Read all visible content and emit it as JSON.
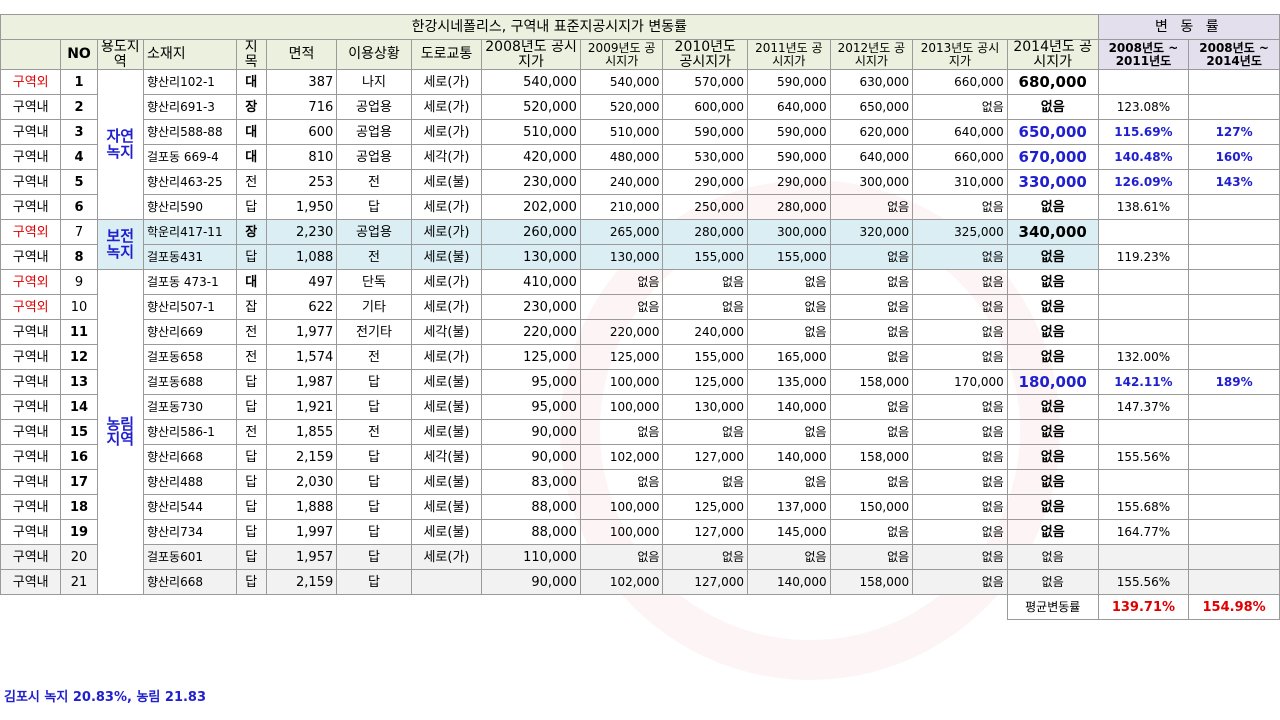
{
  "title": "한강시네폴리스, 구역내 표준지공시지가 변동률",
  "rate_title": "변 동 률",
  "headers": {
    "no": "NO",
    "zone": "용도지역",
    "location": "소재지",
    "land_type": "지목",
    "area": "면적",
    "usage": "이용상황",
    "road": "도로교통",
    "y2008": "2008년도 공시지가",
    "y2009": "2009년도 공시지가",
    "y2010": "2010년도 공시지가",
    "y2011": "2011년도 공시지가",
    "y2012": "2012년도 공시지가",
    "y2013": "2013년도 공시지가",
    "y2014": "2014년도 공시지가",
    "rate1": "2008년도 ~ 2011년도",
    "rate2": "2008년도 ~ 2014년도"
  },
  "zones": {
    "z1": "자연녹지",
    "z2": "보전녹지",
    "z3": "농림지역"
  },
  "rows": [
    {
      "div": "구역외",
      "no": "1",
      "loc": "향산리102-1",
      "type": "대",
      "area": "387",
      "use": "나지",
      "road": "세로(가)",
      "y2008": "540,000",
      "y2009": "540,000",
      "y2010": "570,000",
      "y2011": "590,000",
      "y2012": "630,000",
      "y2013": "660,000",
      "y2014": "680,000",
      "rate1": "",
      "rate2": ""
    },
    {
      "div": "구역내",
      "no": "2",
      "loc": "향산리691-3",
      "type": "장",
      "area": "716",
      "use": "공업용",
      "road": "세로(가)",
      "y2008": "520,000",
      "y2009": "520,000",
      "y2010": "600,000",
      "y2011": "640,000",
      "y2012": "650,000",
      "y2013": "없음",
      "y2014": "없음",
      "rate1": "123.08%",
      "rate2": ""
    },
    {
      "div": "구역내",
      "no": "3",
      "loc": "향산리588-88",
      "type": "대",
      "area": "600",
      "use": "공업용",
      "road": "세로(가)",
      "y2008": "510,000",
      "y2009": "510,000",
      "y2010": "590,000",
      "y2011": "590,000",
      "y2012": "620,000",
      "y2013": "640,000",
      "y2014": "650,000",
      "rate1": "115.69%",
      "rate2": "127%"
    },
    {
      "div": "구역내",
      "no": "4",
      "loc": "걸포동 669-4",
      "type": "대",
      "area": "810",
      "use": "공업용",
      "road": "세각(가)",
      "y2008": "420,000",
      "y2009": "480,000",
      "y2010": "530,000",
      "y2011": "590,000",
      "y2012": "640,000",
      "y2013": "660,000",
      "y2014": "670,000",
      "rate1": "140.48%",
      "rate2": "160%"
    },
    {
      "div": "구역내",
      "no": "5",
      "loc": "향산리463-25",
      "type": "전",
      "area": "253",
      "use": "전",
      "road": "세로(불)",
      "y2008": "230,000",
      "y2009": "240,000",
      "y2010": "290,000",
      "y2011": "290,000",
      "y2012": "300,000",
      "y2013": "310,000",
      "y2014": "330,000",
      "rate1": "126.09%",
      "rate2": "143%"
    },
    {
      "div": "구역내",
      "no": "6",
      "loc": "향산리590",
      "type": "답",
      "area": "1,950",
      "use": "답",
      "road": "세로(가)",
      "y2008": "202,000",
      "y2009": "210,000",
      "y2010": "250,000",
      "y2011": "280,000",
      "y2012": "없음",
      "y2013": "없음",
      "y2014": "없음",
      "rate1": "138.61%",
      "rate2": ""
    },
    {
      "div": "구역외",
      "no": "7",
      "loc": "학운리417-11",
      "type": "장",
      "area": "2,230",
      "use": "공업용",
      "road": "세로(가)",
      "y2008": "260,000",
      "y2009": "265,000",
      "y2010": "280,000",
      "y2011": "300,000",
      "y2012": "320,000",
      "y2013": "325,000",
      "y2014": "340,000",
      "rate1": "",
      "rate2": ""
    },
    {
      "div": "구역내",
      "no": "8",
      "loc": "걸포동431",
      "type": "답",
      "area": "1,088",
      "use": "전",
      "road": "세로(불)",
      "y2008": "130,000",
      "y2009": "130,000",
      "y2010": "155,000",
      "y2011": "155,000",
      "y2012": "없음",
      "y2013": "없음",
      "y2014": "없음",
      "rate1": "119.23%",
      "rate2": ""
    },
    {
      "div": "구역외",
      "no": "9",
      "loc": "걸포동 473-1",
      "type": "대",
      "area": "497",
      "use": "단독",
      "road": "세로(가)",
      "y2008": "410,000",
      "y2009": "없음",
      "y2010": "없음",
      "y2011": "없음",
      "y2012": "없음",
      "y2013": "없음",
      "y2014": "없음",
      "rate1": "",
      "rate2": ""
    },
    {
      "div": "구역외",
      "no": "10",
      "loc": "향산리507-1",
      "type": "잡",
      "area": "622",
      "use": "기타",
      "road": "세로(가)",
      "y2008": "230,000",
      "y2009": "없음",
      "y2010": "없음",
      "y2011": "없음",
      "y2012": "없음",
      "y2013": "없음",
      "y2014": "없음",
      "rate1": "",
      "rate2": ""
    },
    {
      "div": "구역내",
      "no": "11",
      "loc": "향산리669",
      "type": "전",
      "area": "1,977",
      "use": "전기타",
      "road": "세각(불)",
      "y2008": "220,000",
      "y2009": "220,000",
      "y2010": "240,000",
      "y2011": "없음",
      "y2012": "없음",
      "y2013": "없음",
      "y2014": "없음",
      "rate1": "",
      "rate2": ""
    },
    {
      "div": "구역내",
      "no": "12",
      "loc": "걸포동658",
      "type": "전",
      "area": "1,574",
      "use": "전",
      "road": "세로(가)",
      "y2008": "125,000",
      "y2009": "125,000",
      "y2010": "155,000",
      "y2011": "165,000",
      "y2012": "없음",
      "y2013": "없음",
      "y2014": "없음",
      "rate1": "132.00%",
      "rate2": ""
    },
    {
      "div": "구역내",
      "no": "13",
      "loc": "걸포동688",
      "type": "답",
      "area": "1,987",
      "use": "답",
      "road": "세로(불)",
      "y2008": "95,000",
      "y2009": "100,000",
      "y2010": "125,000",
      "y2011": "135,000",
      "y2012": "158,000",
      "y2013": "170,000",
      "y2014": "180,000",
      "rate1": "142.11%",
      "rate2": "189%"
    },
    {
      "div": "구역내",
      "no": "14",
      "loc": "걸포동730",
      "type": "답",
      "area": "1,921",
      "use": "답",
      "road": "세로(불)",
      "y2008": "95,000",
      "y2009": "100,000",
      "y2010": "130,000",
      "y2011": "140,000",
      "y2012": "없음",
      "y2013": "없음",
      "y2014": "없음",
      "rate1": "147.37%",
      "rate2": ""
    },
    {
      "div": "구역내",
      "no": "15",
      "loc": "향산리586-1",
      "type": "전",
      "area": "1,855",
      "use": "전",
      "road": "세로(불)",
      "y2008": "90,000",
      "y2009": "없음",
      "y2010": "없음",
      "y2011": "없음",
      "y2012": "없음",
      "y2013": "없음",
      "y2014": "없음",
      "rate1": "",
      "rate2": ""
    },
    {
      "div": "구역내",
      "no": "16",
      "loc": "향산리668",
      "type": "답",
      "area": "2,159",
      "use": "답",
      "road": "세각(불)",
      "y2008": "90,000",
      "y2009": "102,000",
      "y2010": "127,000",
      "y2011": "140,000",
      "y2012": "158,000",
      "y2013": "없음",
      "y2014": "없음",
      "rate1": "155.56%",
      "rate2": ""
    },
    {
      "div": "구역내",
      "no": "17",
      "loc": "향산리488",
      "type": "답",
      "area": "2,030",
      "use": "답",
      "road": "세로(불)",
      "y2008": "83,000",
      "y2009": "없음",
      "y2010": "없음",
      "y2011": "없음",
      "y2012": "없음",
      "y2013": "없음",
      "y2014": "없음",
      "rate1": "",
      "rate2": ""
    },
    {
      "div": "구역내",
      "no": "18",
      "loc": "향산리544",
      "type": "답",
      "area": "1,888",
      "use": "답",
      "road": "세로(불)",
      "y2008": "88,000",
      "y2009": "100,000",
      "y2010": "125,000",
      "y2011": "137,000",
      "y2012": "150,000",
      "y2013": "없음",
      "y2014": "없음",
      "rate1": "155.68%",
      "rate2": ""
    },
    {
      "div": "구역내",
      "no": "19",
      "loc": "향산리734",
      "type": "답",
      "area": "1,997",
      "use": "답",
      "road": "세로(불)",
      "y2008": "88,000",
      "y2009": "100,000",
      "y2010": "127,000",
      "y2011": "145,000",
      "y2012": "없음",
      "y2013": "없음",
      "y2014": "없음",
      "rate1": "164.77%",
      "rate2": ""
    },
    {
      "div": "구역내",
      "no": "20",
      "loc": "걸포동601",
      "type": "답",
      "area": "1,957",
      "use": "답",
      "road": "세로(가)",
      "y2008": "110,000",
      "y2009": "없음",
      "y2010": "없음",
      "y2011": "없음",
      "y2012": "없음",
      "y2013": "없음",
      "y2014": "없음",
      "rate1": "",
      "rate2": ""
    },
    {
      "div": "구역내",
      "no": "21",
      "loc": "향산리668",
      "type": "답",
      "area": "2,159",
      "use": "답",
      "road": "",
      "y2008": "90,000",
      "y2009": "102,000",
      "y2010": "127,000",
      "y2011": "140,000",
      "y2012": "158,000",
      "y2013": "없음",
      "y2014": "없음",
      "rate1": "155.56%",
      "rate2": ""
    }
  ],
  "average": {
    "label": "평균변동률",
    "rate1": "139.71%",
    "rate2": "154.98%"
  },
  "footnote": "김포시 녹지 20.83%, 농림 21.83",
  "colors": {
    "header_green": "#ebf1de",
    "header_purple": "#e4dfec",
    "zone_blue": "#1f1fd0",
    "outside_red": "#e00000",
    "highlight_blue": "#daeef3"
  }
}
